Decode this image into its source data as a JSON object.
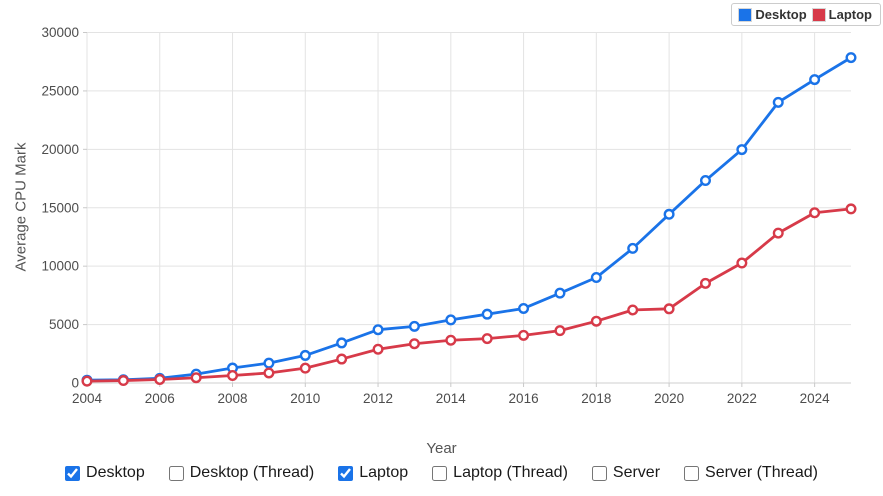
{
  "chart_data": {
    "type": "line",
    "title": "",
    "xlabel": "Year",
    "ylabel": "Average CPU Mark",
    "x": [
      2004,
      2005,
      2006,
      2007,
      2008,
      2009,
      2010,
      2011,
      2012,
      2013,
      2014,
      2015,
      2016,
      2017,
      2018,
      2019,
      2020,
      2021,
      2022,
      2023,
      2024,
      2025
    ],
    "x_ticks": [
      2004,
      2006,
      2008,
      2010,
      2012,
      2014,
      2016,
      2018,
      2020,
      2022,
      2024
    ],
    "y_ticks": [
      0,
      5000,
      10000,
      15000,
      20000,
      25000,
      30000
    ],
    "xlim": [
      2004,
      2025
    ],
    "ylim": [
      0,
      30000
    ],
    "grid": true,
    "legend_position": "top-right",
    "series": [
      {
        "name": "Desktop",
        "color": "#1a73e8",
        "values": [
          240,
          280,
          400,
          760,
          1280,
          1700,
          2360,
          3430,
          4560,
          4850,
          5400,
          5890,
          6380,
          7690,
          9030,
          11520,
          14440,
          17330,
          19980,
          24020,
          25970,
          27850
        ]
      },
      {
        "name": "Laptop",
        "color": "#d73a49",
        "values": [
          160,
          210,
          300,
          450,
          640,
          860,
          1270,
          2050,
          2890,
          3360,
          3660,
          3800,
          4080,
          4480,
          5290,
          6250,
          6350,
          8530,
          10270,
          12830,
          14570,
          14900
        ]
      }
    ],
    "colors": {
      "grid": "#e3e3e3",
      "axis": "#c9c9c9",
      "tick_text": "#4d4d4d",
      "axis_title_text": "#555555",
      "marker_fill": "#ffffff"
    }
  },
  "legend": {
    "items": [
      {
        "label": "Desktop",
        "color": "#1a73e8"
      },
      {
        "label": "Laptop",
        "color": "#d73a49"
      }
    ]
  },
  "axis_titles": {
    "x": "Year",
    "y": "Average CPU Mark"
  },
  "filters": {
    "items": [
      {
        "label": "Desktop",
        "checked": true
      },
      {
        "label": "Desktop (Thread)",
        "checked": false
      },
      {
        "label": "Laptop",
        "checked": true
      },
      {
        "label": "Laptop (Thread)",
        "checked": false
      },
      {
        "label": "Server",
        "checked": false
      },
      {
        "label": "Server (Thread)",
        "checked": false
      }
    ]
  }
}
